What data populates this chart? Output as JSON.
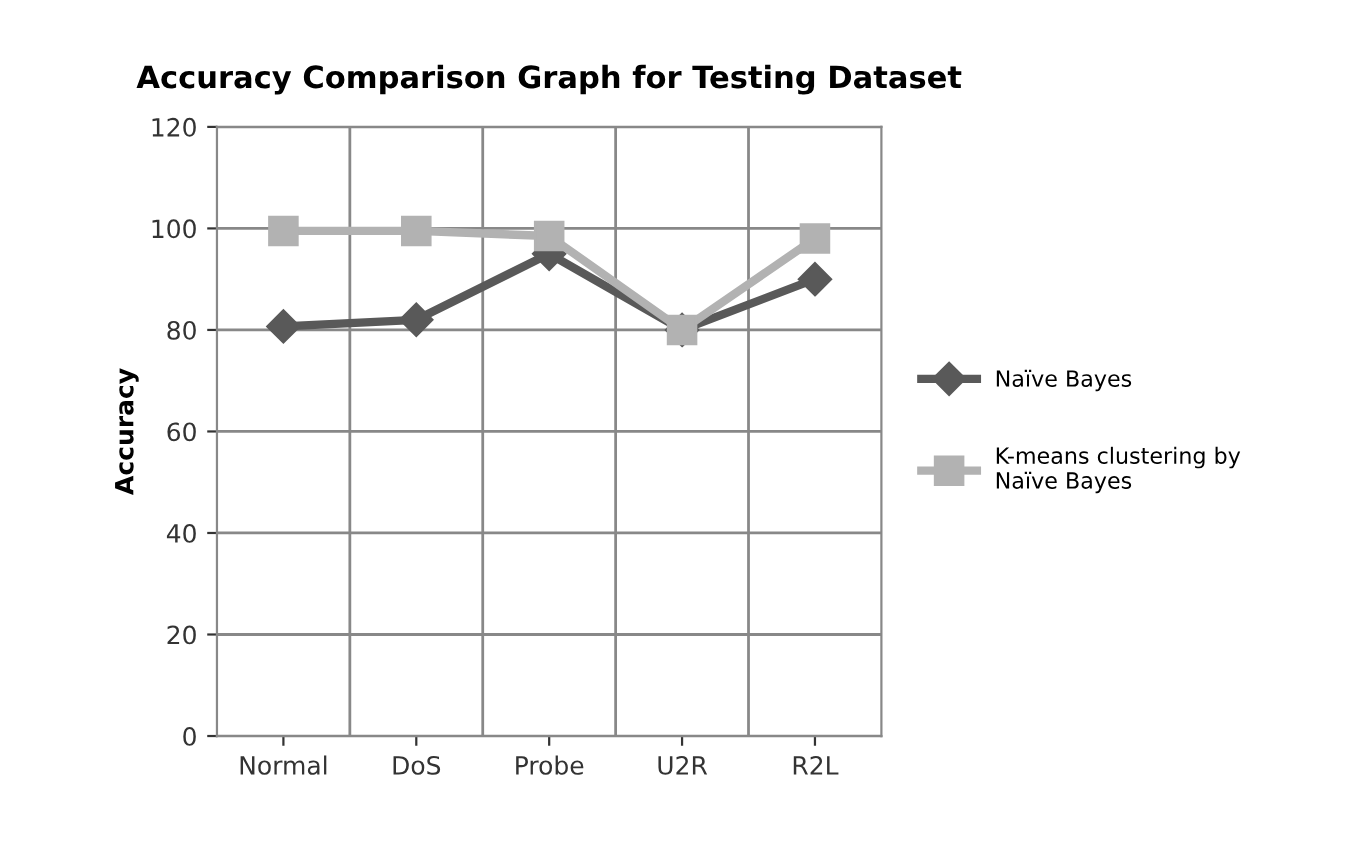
{
  "chart_data": {
    "type": "line",
    "title": "Accuracy Comparison Graph for Testing Dataset",
    "ylabel": "Accuracy",
    "categories": [
      "Normal",
      "DoS",
      "Probe",
      "U2R",
      "R2L"
    ],
    "series": [
      {
        "name": "Naïve Bayes",
        "color": "#595959",
        "marker": "diamond",
        "values": [
          80.7,
          82,
          95,
          80,
          90
        ]
      },
      {
        "name": "K-means clustering by\nNaïve Bayes",
        "color": "#b2b2b2",
        "marker": "square",
        "values": [
          99.5,
          99.5,
          98.5,
          80,
          98
        ]
      }
    ],
    "ylim": [
      0,
      120
    ],
    "yticks": [
      0,
      20,
      40,
      60,
      80,
      100,
      120
    ],
    "grid": true,
    "legend": "right",
    "line_style": "solid"
  }
}
